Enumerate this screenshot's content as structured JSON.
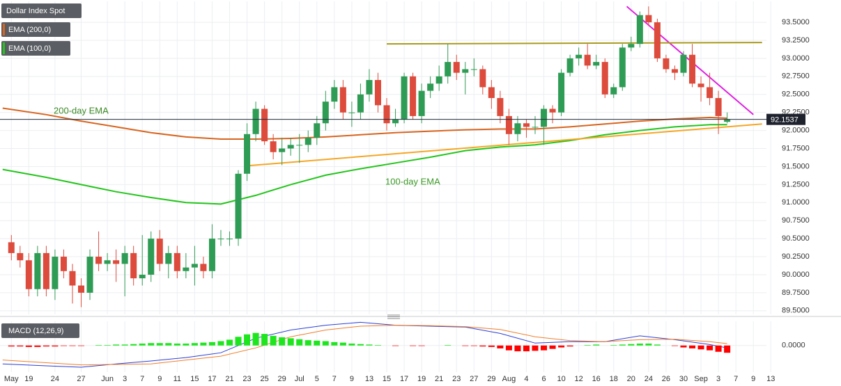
{
  "chart_data": [
    {
      "type": "candlestick",
      "title": "Dollar Index Spot",
      "up_color": "#2f9c55",
      "down_color": "#dc4b3c",
      "open": [
        90.45,
        90.3,
        90.2,
        89.8,
        90.3,
        89.8,
        90.25,
        90.05,
        89.85,
        89.75,
        90.25,
        90.15,
        90.2,
        90.15,
        90.3,
        89.95,
        90.0,
        90.5,
        90.15,
        90.3,
        90.05,
        90.1,
        90.15,
        90.05,
        90.5,
        90.5,
        90.5,
        91.4,
        91.95,
        92.3,
        91.85,
        91.7,
        91.75,
        91.8,
        91.8,
        91.9,
        92.1,
        92.4,
        92.6,
        92.25,
        92.25,
        92.5,
        92.7,
        92.35,
        92.1,
        92.15,
        92.75,
        92.2,
        92.55,
        92.65,
        92.75,
        92.95,
        92.8,
        92.85,
        92.85,
        92.6,
        92.45,
        92.2,
        91.95,
        92.1,
        92.05,
        92.05,
        92.3,
        92.25,
        92.8,
        93.0,
        93.05,
        92.9,
        92.95,
        92.5,
        92.6,
        93.15,
        93.2,
        93.6,
        93.5,
        93.0,
        92.85,
        92.8,
        93.05,
        92.65,
        92.6,
        92.45,
        92.12
      ],
      "high": [
        90.55,
        90.4,
        90.3,
        90.4,
        90.4,
        90.35,
        90.35,
        90.15,
        89.95,
        90.35,
        90.6,
        90.3,
        90.35,
        90.4,
        90.4,
        90.55,
        90.6,
        90.62,
        90.4,
        90.4,
        90.3,
        90.4,
        90.25,
        90.7,
        90.62,
        90.6,
        91.45,
        92.1,
        92.4,
        92.35,
        91.95,
        91.9,
        91.9,
        91.95,
        92.0,
        92.2,
        92.55,
        92.7,
        92.7,
        92.4,
        92.65,
        92.85,
        92.8,
        92.45,
        92.3,
        92.8,
        92.8,
        92.65,
        92.75,
        92.9,
        93.2,
        93.05,
        92.95,
        93.0,
        92.9,
        92.7,
        92.55,
        92.3,
        92.2,
        92.15,
        92.2,
        92.35,
        92.35,
        92.85,
        93.05,
        93.15,
        93.2,
        93.05,
        93.0,
        92.65,
        93.2,
        93.3,
        93.65,
        93.72,
        93.55,
        93.05,
        92.9,
        93.1,
        93.2,
        92.75,
        92.8,
        92.55,
        92.25
      ],
      "low": [
        90.2,
        90.1,
        89.7,
        89.7,
        89.7,
        89.65,
        89.95,
        89.6,
        89.55,
        89.65,
        90.05,
        90.05,
        89.9,
        89.7,
        89.85,
        89.85,
        89.9,
        90.05,
        89.95,
        89.95,
        89.95,
        89.85,
        89.95,
        89.95,
        90.4,
        90.4,
        90.4,
        91.3,
        91.85,
        91.8,
        91.6,
        91.52,
        91.65,
        91.55,
        91.7,
        91.8,
        92.0,
        92.3,
        92.15,
        92.05,
        92.15,
        92.4,
        92.25,
        92.0,
        92.05,
        92.1,
        92.15,
        92.1,
        92.45,
        92.55,
        92.65,
        92.7,
        92.5,
        92.75,
        92.5,
        92.3,
        92.1,
        91.8,
        91.85,
        91.9,
        91.95,
        91.8,
        92.1,
        92.2,
        92.75,
        92.9,
        92.85,
        92.85,
        92.45,
        92.45,
        92.55,
        93.1,
        93.15,
        93.45,
        92.95,
        92.8,
        92.7,
        92.75,
        92.6,
        92.4,
        92.35,
        91.95,
        92.1
      ],
      "close": [
        90.3,
        90.2,
        89.8,
        90.3,
        89.8,
        90.25,
        90.05,
        89.85,
        89.75,
        90.25,
        90.15,
        90.2,
        90.15,
        90.3,
        89.95,
        90.0,
        90.5,
        90.15,
        90.3,
        90.05,
        90.1,
        90.15,
        90.05,
        90.5,
        90.5,
        90.5,
        91.4,
        91.95,
        92.3,
        91.85,
        91.7,
        91.75,
        91.8,
        91.8,
        91.9,
        92.1,
        92.4,
        92.6,
        92.25,
        92.25,
        92.5,
        92.7,
        92.35,
        92.1,
        92.15,
        92.75,
        92.2,
        92.55,
        92.65,
        92.75,
        92.95,
        92.8,
        92.85,
        92.85,
        92.6,
        92.45,
        92.2,
        91.95,
        92.1,
        92.05,
        92.05,
        92.3,
        92.25,
        92.8,
        93.0,
        93.05,
        92.9,
        92.95,
        92.5,
        92.6,
        93.15,
        93.2,
        93.6,
        93.5,
        93.0,
        92.85,
        92.8,
        93.05,
        92.65,
        92.6,
        92.45,
        92.2,
        92.15
      ],
      "series": [
        {
          "name": "EMA (200,0)",
          "color": "#d8641e",
          "x": [
            -1,
            4,
            8,
            12,
            16,
            20,
            24,
            28,
            32,
            36,
            40,
            44,
            48,
            52,
            56,
            60,
            64,
            68,
            72,
            76,
            80,
            82
          ],
          "values": [
            92.31,
            92.22,
            92.13,
            92.05,
            91.97,
            91.91,
            91.88,
            91.88,
            91.89,
            91.91,
            91.94,
            91.97,
            91.99,
            92.01,
            92.02,
            92.02,
            92.05,
            92.09,
            92.13,
            92.16,
            92.18,
            92.17
          ]
        },
        {
          "name": "EMA (100,0)",
          "color": "#22c51a",
          "x": [
            -1,
            4,
            8,
            12,
            16,
            20,
            24,
            28,
            32,
            36,
            40,
            44,
            48,
            52,
            56,
            60,
            64,
            68,
            72,
            76,
            80,
            82
          ],
          "values": [
            91.46,
            91.35,
            91.25,
            91.15,
            91.07,
            91.0,
            90.98,
            91.1,
            91.25,
            91.38,
            91.47,
            91.55,
            91.63,
            91.72,
            91.77,
            91.8,
            91.86,
            91.94,
            92.0,
            92.05,
            92.08,
            92.08
          ]
        }
      ],
      "trendlines": [
        {
          "color": "#f5a623",
          "x": [
            27,
            86
          ],
          "y": [
            91.51,
            92.09
          ]
        },
        {
          "color": "#e020e0",
          "x": [
            70.5,
            85
          ],
          "y": [
            93.72,
            92.22
          ]
        },
        {
          "color": "#a89a1b",
          "x": [
            43,
            86
          ],
          "y": [
            93.2,
            93.22
          ]
        }
      ],
      "annotations": [
        "200-day EMA",
        "100-day EMA"
      ],
      "last_price": {
        "value": 92.1537,
        "label": "92.1537"
      },
      "xlim": [
        -1.3,
        86.5
      ],
      "ylim": [
        89.45,
        93.79
      ],
      "yticks": [
        {
          "value": 89.5,
          "label": "89.5000"
        },
        {
          "value": 89.75,
          "label": "89.7500"
        },
        {
          "value": 90,
          "label": "90.0000"
        },
        {
          "value": 90.25,
          "label": "90.2500"
        },
        {
          "value": 90.5,
          "label": "90.5000"
        },
        {
          "value": 90.75,
          "label": "90.7500"
        },
        {
          "value": 91,
          "label": "91.0000"
        },
        {
          "value": 91.25,
          "label": "91.2500"
        },
        {
          "value": 91.5,
          "label": "91.5000"
        },
        {
          "value": 91.75,
          "label": "91.7500"
        },
        {
          "value": 92,
          "label": "92.0000"
        },
        {
          "value": 92.25,
          "label": "92.2500"
        },
        {
          "value": 92.5,
          "label": "92.5000"
        },
        {
          "value": 92.75,
          "label": "92.7500"
        },
        {
          "value": 93,
          "label": "93.0000"
        },
        {
          "value": 93.25,
          "label": "93.2500"
        },
        {
          "value": 93.5,
          "label": "93.5000"
        }
      ],
      "xticks": [
        {
          "value": 0,
          "label": "May"
        },
        {
          "value": 2,
          "label": "19"
        },
        {
          "value": 5,
          "label": "24"
        },
        {
          "value": 8,
          "label": "27"
        },
        {
          "value": 11,
          "label": "Jun"
        },
        {
          "value": 13,
          "label": "3"
        },
        {
          "value": 15,
          "label": "7"
        },
        {
          "value": 17,
          "label": "9"
        },
        {
          "value": 19,
          "label": "11"
        },
        {
          "value": 21,
          "label": "15"
        },
        {
          "value": 23,
          "label": "17"
        },
        {
          "value": 25,
          "label": "21"
        },
        {
          "value": 27,
          "label": "23"
        },
        {
          "value": 29,
          "label": "25"
        },
        {
          "value": 31,
          "label": "29"
        },
        {
          "value": 33,
          "label": "Jul"
        },
        {
          "value": 35,
          "label": "5"
        },
        {
          "value": 37,
          "label": "7"
        },
        {
          "value": 39,
          "label": "9"
        },
        {
          "value": 41,
          "label": "13"
        },
        {
          "value": 43,
          "label": "15"
        },
        {
          "value": 45,
          "label": "17"
        },
        {
          "value": 47,
          "label": "19"
        },
        {
          "value": 49,
          "label": "21"
        },
        {
          "value": 51,
          "label": "23"
        },
        {
          "value": 53,
          "label": "27"
        },
        {
          "value": 55,
          "label": "29"
        },
        {
          "value": 57,
          "label": "Aug"
        },
        {
          "value": 59,
          "label": "4"
        },
        {
          "value": 61,
          "label": "6"
        },
        {
          "value": 63,
          "label": "10"
        },
        {
          "value": 65,
          "label": "12"
        },
        {
          "value": 67,
          "label": "16"
        },
        {
          "value": 69,
          "label": "18"
        },
        {
          "value": 71,
          "label": "20"
        },
        {
          "value": 73,
          "label": "24"
        },
        {
          "value": 75,
          "label": "26"
        },
        {
          "value": 77,
          "label": "30"
        },
        {
          "value": 79,
          "label": "Sep"
        },
        {
          "value": 81,
          "label": "3"
        },
        {
          "value": 83,
          "label": "7"
        },
        {
          "value": 85,
          "label": "9"
        },
        {
          "value": 87,
          "label": "13"
        }
      ],
      "grid": true
    },
    {
      "type": "macd",
      "title": "MACD (12,26,9)",
      "histogram": {
        "up_color": "#1ee61e",
        "down_color": "#ff0000",
        "values": [
          -0.02,
          -0.02,
          -0.03,
          -0.03,
          -0.02,
          -0.02,
          -0.01,
          -0.01,
          -0.01,
          0.0,
          0.01,
          0.01,
          0.02,
          0.02,
          0.03,
          0.04,
          0.05,
          0.05,
          0.05,
          0.04,
          0.04,
          0.05,
          0.06,
          0.07,
          0.09,
          0.12,
          0.18,
          0.23,
          0.26,
          0.24,
          0.2,
          0.17,
          0.15,
          0.13,
          0.11,
          0.1,
          0.09,
          0.07,
          0.06,
          0.04,
          0.03,
          0.02,
          0.01,
          0.0,
          -0.01,
          0.0,
          -0.01,
          -0.01,
          0.0,
          0.0,
          0.01,
          0.0,
          -0.01,
          -0.01,
          -0.02,
          -0.03,
          -0.06,
          -0.1,
          -0.12,
          -0.12,
          -0.11,
          -0.1,
          -0.07,
          -0.04,
          -0.02,
          0.0,
          0.01,
          0.02,
          0.0,
          0.01,
          0.02,
          0.03,
          0.04,
          0.04,
          0.02,
          0.0,
          -0.01,
          -0.04,
          -0.06,
          -0.08,
          -0.1,
          -0.13,
          -0.15
        ]
      },
      "series": [
        {
          "color": "#2b3fd6",
          "x": [
            -1,
            4,
            8,
            12,
            16,
            20,
            24,
            28,
            32,
            36,
            40,
            44,
            48,
            52,
            56,
            60,
            64,
            68,
            72,
            76,
            80,
            82
          ],
          "values": [
            -0.38,
            -0.42,
            -0.45,
            -0.38,
            -0.32,
            -0.25,
            -0.15,
            0.15,
            0.32,
            0.42,
            0.48,
            0.42,
            0.4,
            0.38,
            0.25,
            0.05,
            0.08,
            0.08,
            0.2,
            0.12,
            0.02,
            -0.05
          ]
        },
        {
          "color": "#f07d28",
          "x": [
            -1,
            8,
            16,
            24,
            28,
            32,
            36,
            40,
            44,
            48,
            52,
            56,
            60,
            64,
            68,
            72,
            76,
            80,
            82
          ],
          "values": [
            -0.3,
            -0.4,
            -0.38,
            -0.22,
            -0.05,
            0.18,
            0.32,
            0.4,
            0.42,
            0.41,
            0.39,
            0.33,
            0.18,
            0.1,
            0.08,
            0.12,
            0.13,
            0.08,
            0.04
          ]
        }
      ],
      "xlim": [
        -1.3,
        86.5
      ],
      "ylim": [
        -0.55,
        0.5
      ],
      "yticks": [
        {
          "value": 0,
          "label": "0.0000"
        }
      ]
    }
  ]
}
